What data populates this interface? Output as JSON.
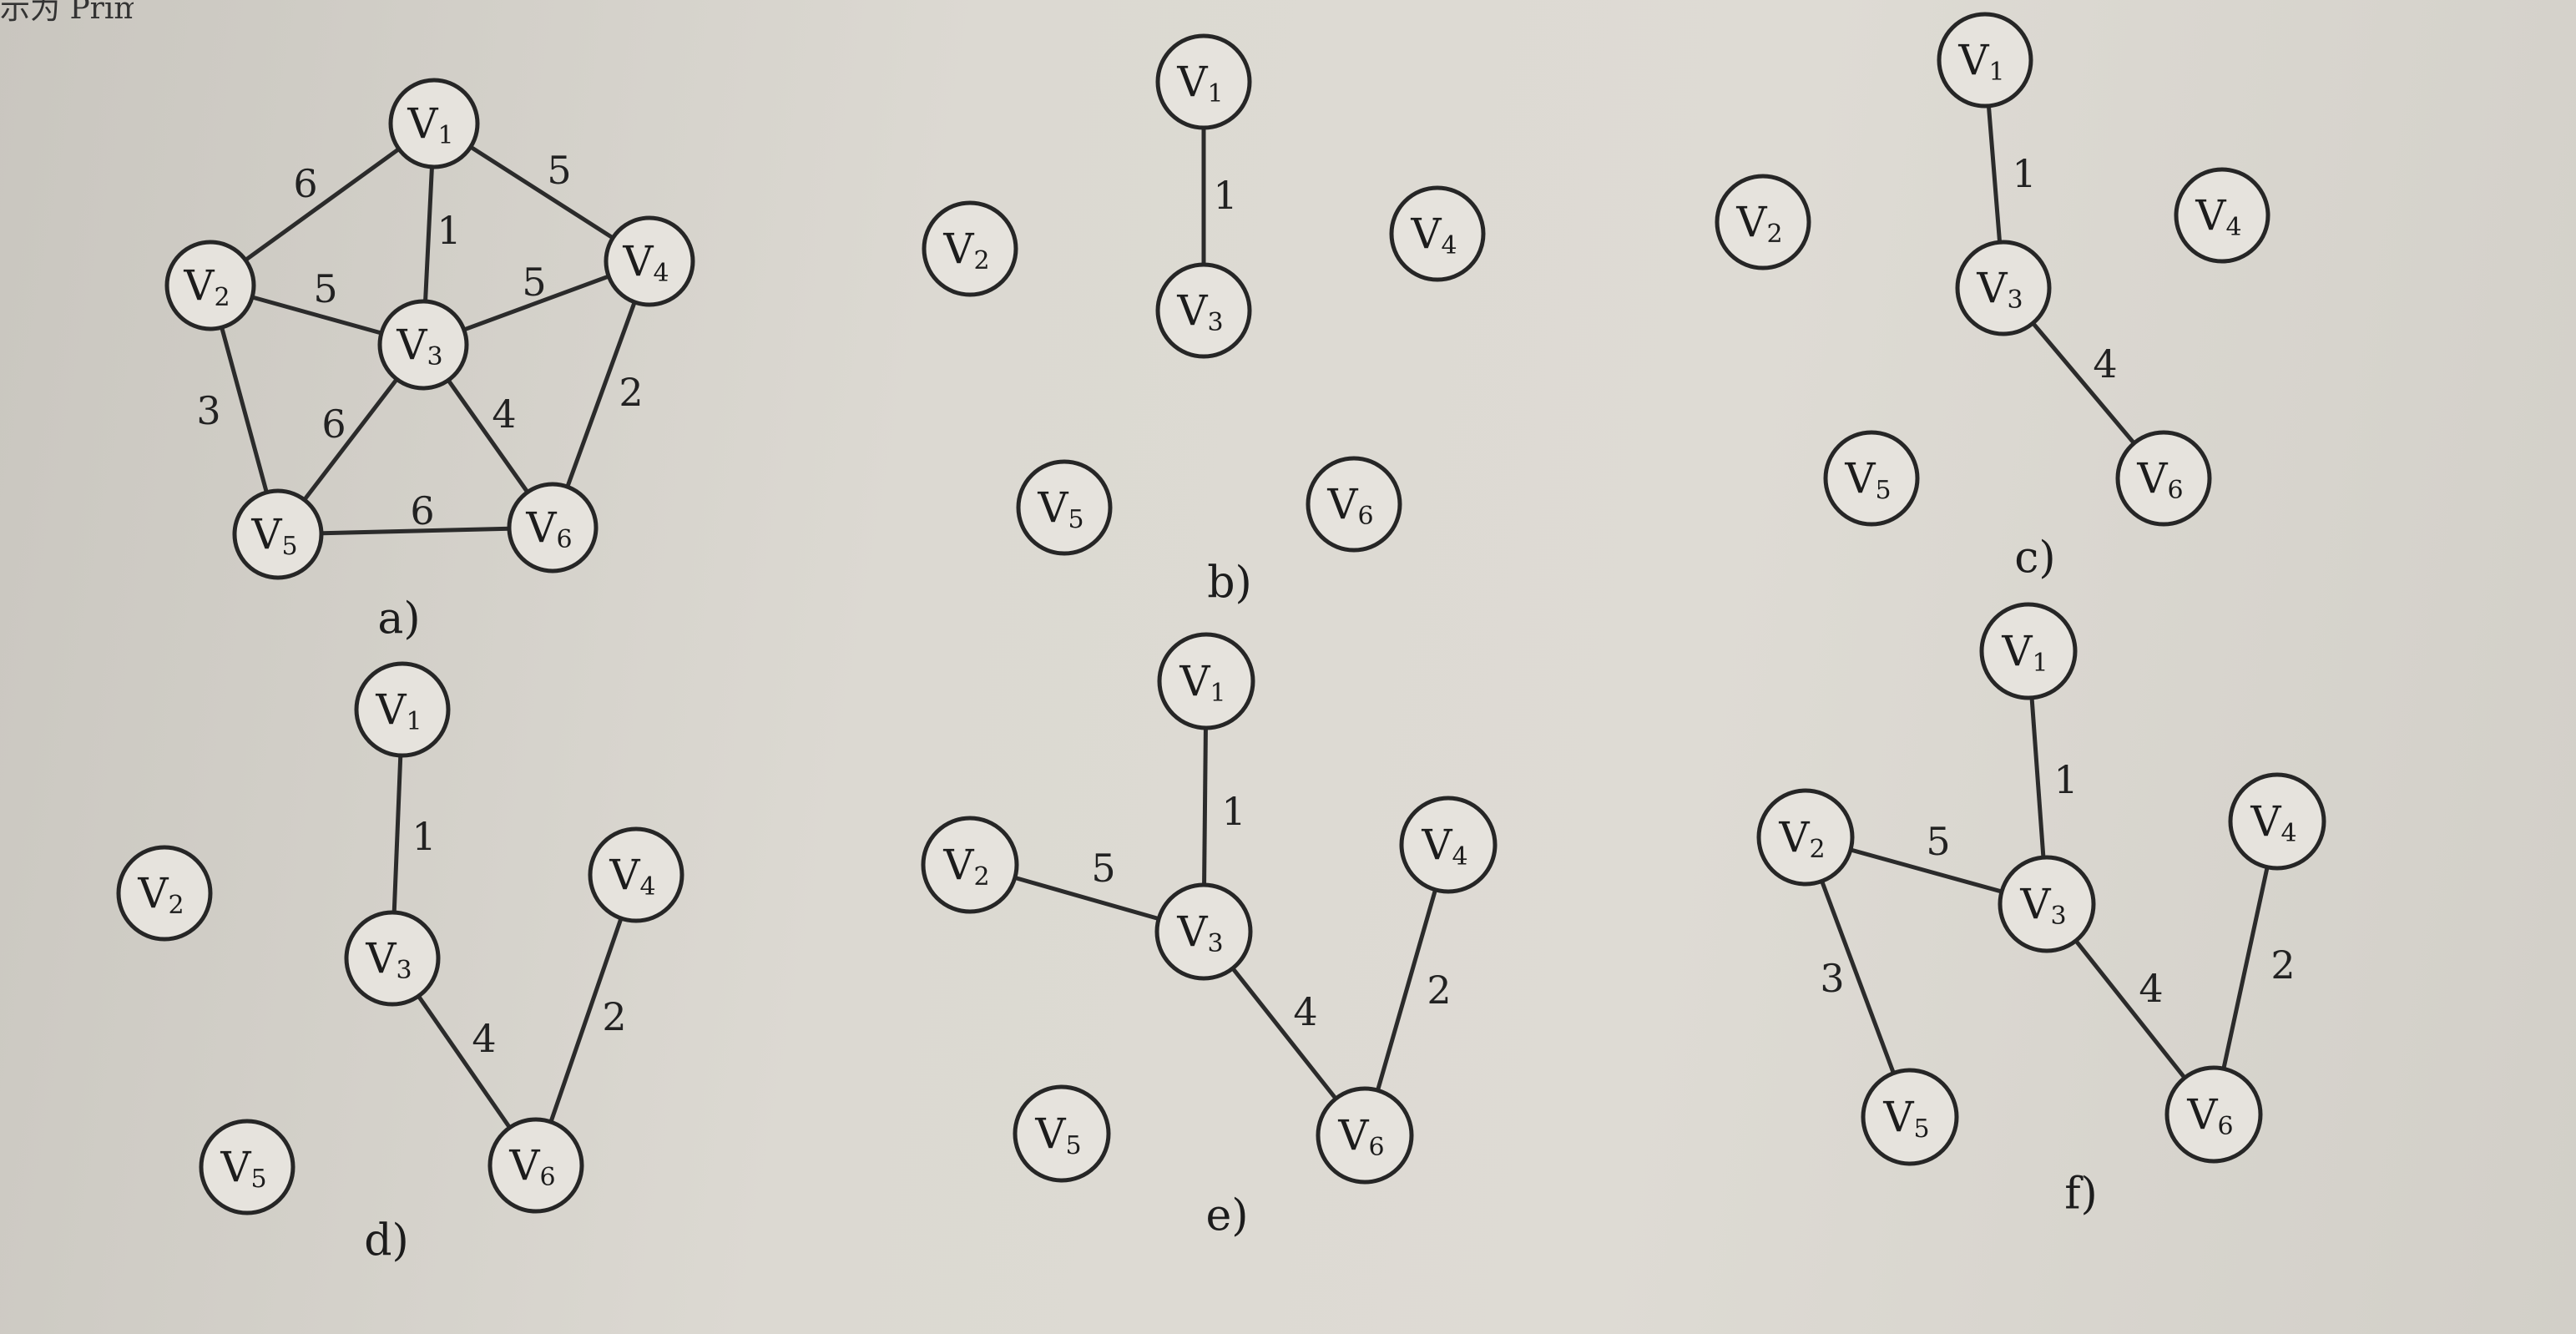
{
  "header_text": "示为 Prim 算法",
  "panels": [
    {
      "caption": "a)",
      "nodes": [
        {
          "label": "V",
          "sub": "1"
        },
        {
          "label": "V",
          "sub": "2"
        },
        {
          "label": "V",
          "sub": "3"
        },
        {
          "label": "V",
          "sub": "4"
        },
        {
          "label": "V",
          "sub": "5"
        },
        {
          "label": "V",
          "sub": "6"
        }
      ],
      "edges": [
        {
          "from": "V1",
          "to": "V2",
          "weight": "6"
        },
        {
          "from": "V1",
          "to": "V3",
          "weight": "1"
        },
        {
          "from": "V1",
          "to": "V4",
          "weight": "5"
        },
        {
          "from": "V2",
          "to": "V3",
          "weight": "5"
        },
        {
          "from": "V3",
          "to": "V4",
          "weight": "5"
        },
        {
          "from": "V2",
          "to": "V5",
          "weight": "3"
        },
        {
          "from": "V3",
          "to": "V5",
          "weight": "6"
        },
        {
          "from": "V3",
          "to": "V6",
          "weight": "4"
        },
        {
          "from": "V4",
          "to": "V6",
          "weight": "2"
        },
        {
          "from": "V5",
          "to": "V6",
          "weight": "6"
        }
      ]
    },
    {
      "caption": "b)",
      "nodes": [
        {
          "label": "V",
          "sub": "1"
        },
        {
          "label": "V",
          "sub": "2"
        },
        {
          "label": "V",
          "sub": "3"
        },
        {
          "label": "V",
          "sub": "4"
        },
        {
          "label": "V",
          "sub": "5"
        },
        {
          "label": "V",
          "sub": "6"
        }
      ],
      "edges": [
        {
          "from": "V1",
          "to": "V3",
          "weight": "1"
        }
      ]
    },
    {
      "caption": "c)",
      "nodes": [
        {
          "label": "V",
          "sub": "1"
        },
        {
          "label": "V",
          "sub": "2"
        },
        {
          "label": "V",
          "sub": "3"
        },
        {
          "label": "V",
          "sub": "4"
        },
        {
          "label": "V",
          "sub": "5"
        },
        {
          "label": "V",
          "sub": "6"
        }
      ],
      "edges": [
        {
          "from": "V1",
          "to": "V3",
          "weight": "1"
        },
        {
          "from": "V3",
          "to": "V6",
          "weight": "4"
        }
      ]
    },
    {
      "caption": "d)",
      "nodes": [
        {
          "label": "V",
          "sub": "1"
        },
        {
          "label": "V",
          "sub": "2"
        },
        {
          "label": "V",
          "sub": "3"
        },
        {
          "label": "V",
          "sub": "4"
        },
        {
          "label": "V",
          "sub": "5"
        },
        {
          "label": "V",
          "sub": "6"
        }
      ],
      "edges": [
        {
          "from": "V1",
          "to": "V3",
          "weight": "1"
        },
        {
          "from": "V3",
          "to": "V6",
          "weight": "4"
        },
        {
          "from": "V4",
          "to": "V6",
          "weight": "2"
        }
      ]
    },
    {
      "caption": "e)",
      "nodes": [
        {
          "label": "V",
          "sub": "1"
        },
        {
          "label": "V",
          "sub": "2"
        },
        {
          "label": "V",
          "sub": "3"
        },
        {
          "label": "V",
          "sub": "4"
        },
        {
          "label": "V",
          "sub": "5"
        },
        {
          "label": "V",
          "sub": "6"
        }
      ],
      "edges": [
        {
          "from": "V1",
          "to": "V3",
          "weight": "1"
        },
        {
          "from": "V2",
          "to": "V3",
          "weight": "5"
        },
        {
          "from": "V3",
          "to": "V6",
          "weight": "4"
        },
        {
          "from": "V4",
          "to": "V6",
          "weight": "2"
        }
      ]
    },
    {
      "caption": "f)",
      "nodes": [
        {
          "label": "V",
          "sub": "1"
        },
        {
          "label": "V",
          "sub": "2"
        },
        {
          "label": "V",
          "sub": "3"
        },
        {
          "label": "V",
          "sub": "4"
        },
        {
          "label": "V",
          "sub": "5"
        },
        {
          "label": "V",
          "sub": "6"
        }
      ],
      "edges": [
        {
          "from": "V1",
          "to": "V3",
          "weight": "1"
        },
        {
          "from": "V2",
          "to": "V3",
          "weight": "5"
        },
        {
          "from": "V2",
          "to": "V5",
          "weight": "3"
        },
        {
          "from": "V3",
          "to": "V6",
          "weight": "4"
        },
        {
          "from": "V4",
          "to": "V6",
          "weight": "2"
        }
      ]
    }
  ]
}
